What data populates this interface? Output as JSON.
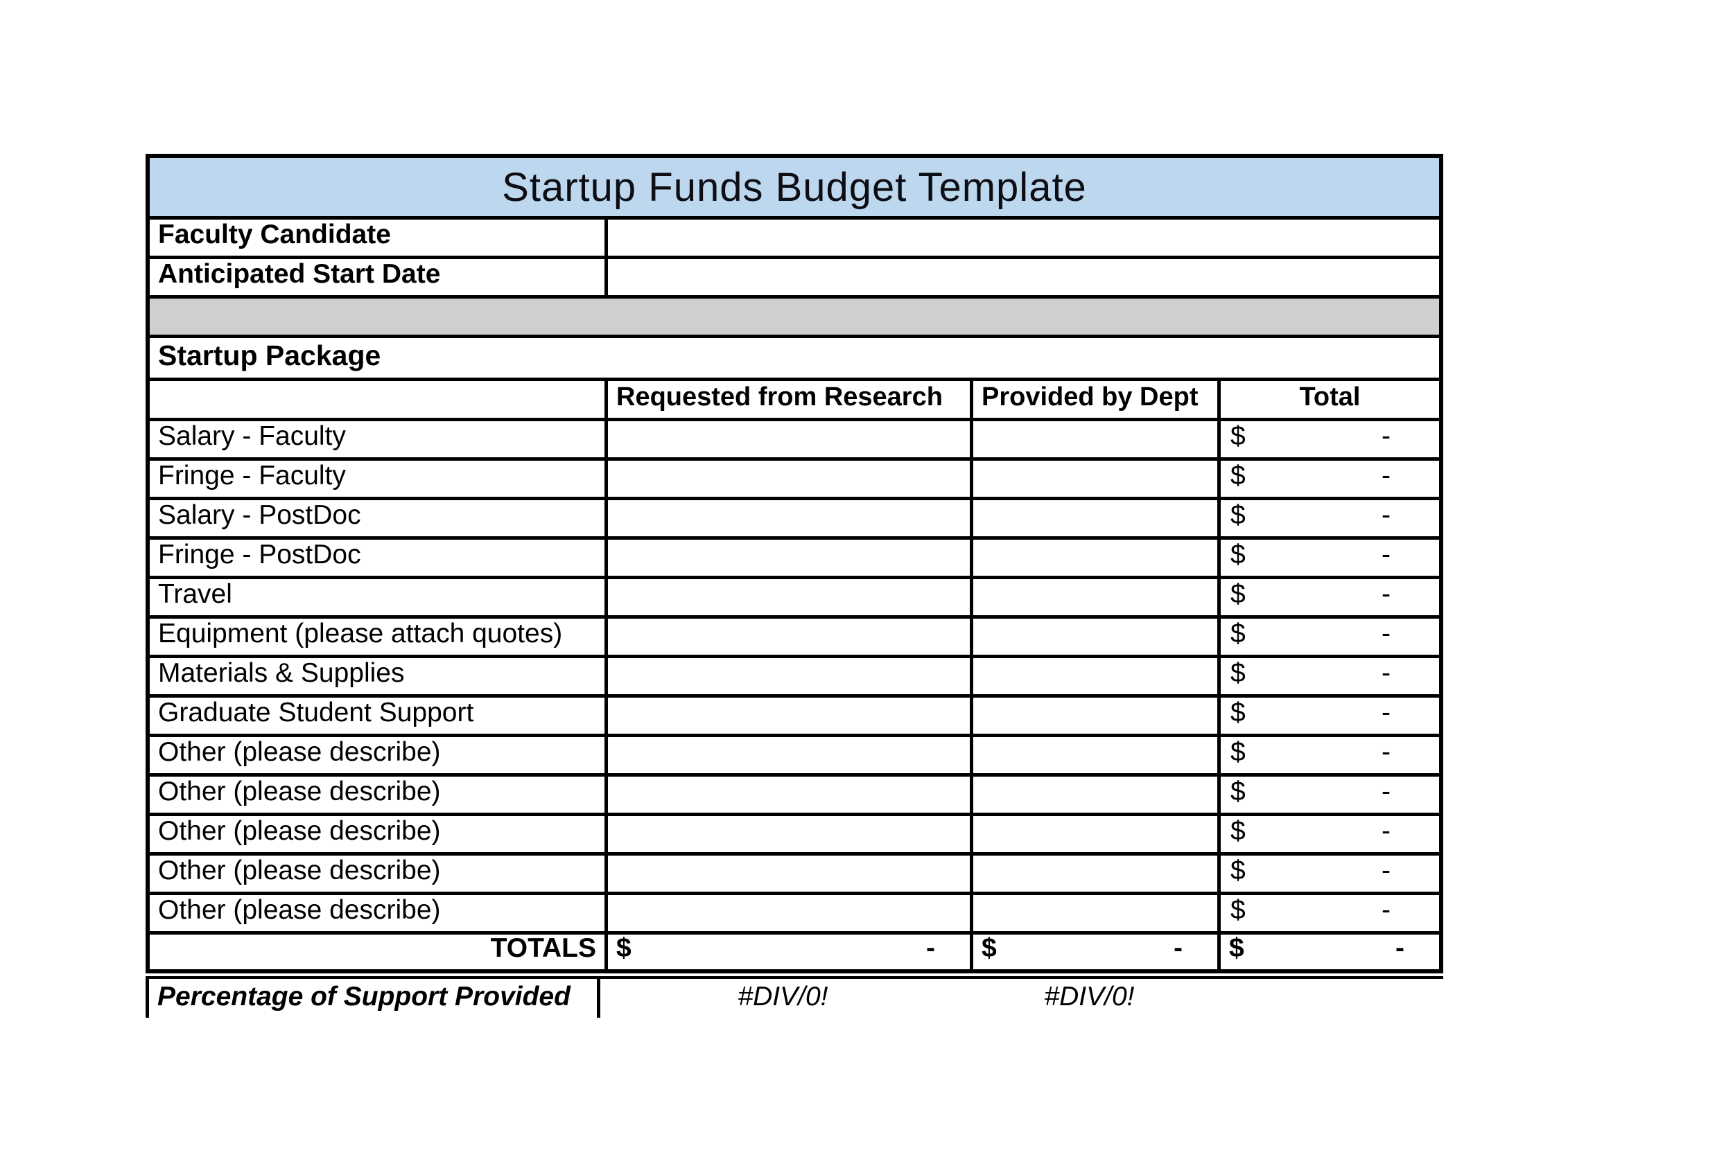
{
  "header": {
    "title": "Startup Funds Budget Template"
  },
  "info": {
    "faculty_candidate_label": "Faculty Candidate",
    "faculty_candidate_value": "",
    "start_date_label": "Anticipated Start Date",
    "start_date_value": ""
  },
  "section": {
    "title": "Startup Package"
  },
  "table": {
    "col_headers": {
      "requested": "Requested from Research",
      "provided": "Provided by Dept",
      "total": "Total"
    },
    "line_items": [
      {
        "label": "Salary - Faculty",
        "requested": "",
        "provided": "",
        "total_currency": "$",
        "total_amount": "-"
      },
      {
        "label": "Fringe - Faculty",
        "requested": "",
        "provided": "",
        "total_currency": "$",
        "total_amount": "-"
      },
      {
        "label": "Salary - PostDoc",
        "requested": "",
        "provided": "",
        "total_currency": "$",
        "total_amount": "-"
      },
      {
        "label": "Fringe - PostDoc",
        "requested": "",
        "provided": "",
        "total_currency": "$",
        "total_amount": "-"
      },
      {
        "label": "Travel",
        "requested": "",
        "provided": "",
        "total_currency": "$",
        "total_amount": "-"
      },
      {
        "label": "Equipment (please attach quotes)",
        "requested": "",
        "provided": "",
        "total_currency": "$",
        "total_amount": "-"
      },
      {
        "label": "Materials & Supplies",
        "requested": "",
        "provided": "",
        "total_currency": "$",
        "total_amount": "-"
      },
      {
        "label": "Graduate Student Support",
        "requested": "",
        "provided": "",
        "total_currency": "$",
        "total_amount": "-"
      },
      {
        "label": "Other (please describe)",
        "requested": "",
        "provided": "",
        "total_currency": "$",
        "total_amount": "-"
      },
      {
        "label": "Other (please describe)",
        "requested": "",
        "provided": "",
        "total_currency": "$",
        "total_amount": "-"
      },
      {
        "label": "Other (please describe)",
        "requested": "",
        "provided": "",
        "total_currency": "$",
        "total_amount": "-"
      },
      {
        "label": "Other (please describe)",
        "requested": "",
        "provided": "",
        "total_currency": "$",
        "total_amount": "-"
      },
      {
        "label": "Other (please describe)",
        "requested": "",
        "provided": "",
        "total_currency": "$",
        "total_amount": "-"
      }
    ],
    "totals": {
      "label": "TOTALS",
      "requested_currency": "$",
      "requested_amount": "-",
      "provided_currency": "$",
      "provided_amount": "-",
      "total_currency": "$",
      "total_amount": "-"
    },
    "percentage": {
      "label": "Percentage of Support Provided",
      "requested_error": "#DIV/0!",
      "provided_error": "#DIV/0!"
    }
  },
  "colors": {
    "title_bg": "#BDD7EE",
    "separator_bg": "#CFCFCF",
    "border": "#000000"
  }
}
